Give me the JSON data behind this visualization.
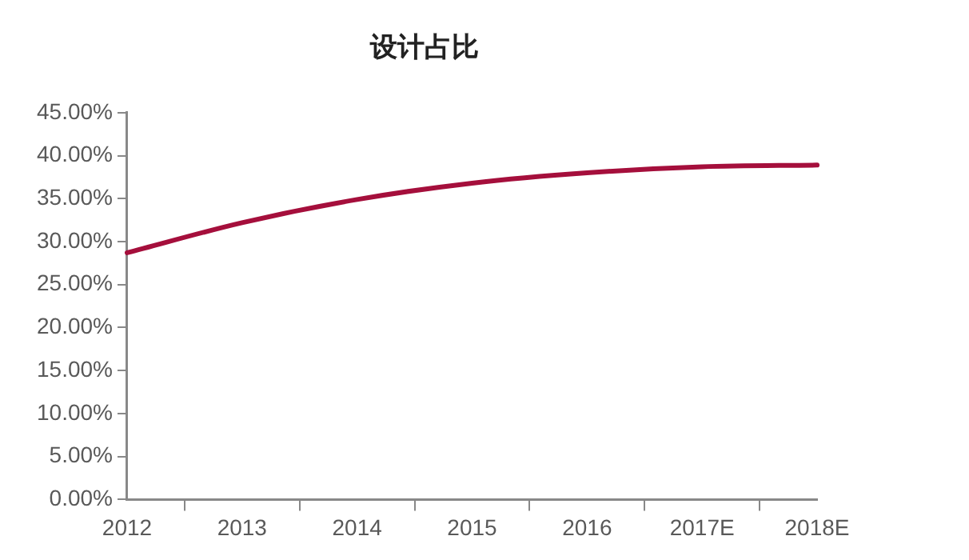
{
  "chart_data": {
    "type": "line",
    "title": "设计占比",
    "categories": [
      "2012",
      "2013",
      "2014",
      "2015",
      "2016",
      "2017E",
      "2018E"
    ],
    "series": [
      {
        "color": "#a50f3c",
        "values": [
          28.7,
          32.2,
          34.9,
          36.8,
          38.0,
          38.7,
          38.9
        ]
      }
    ],
    "ylim": [
      0,
      45
    ],
    "yticks": [
      {
        "value": 0,
        "label": "0.00%"
      },
      {
        "value": 5,
        "label": "5.00%"
      },
      {
        "value": 10,
        "label": "10.00%"
      },
      {
        "value": 15,
        "label": "15.00%"
      },
      {
        "value": 20,
        "label": "20.00%"
      },
      {
        "value": 25,
        "label": "25.00%"
      },
      {
        "value": 30,
        "label": "30.00%"
      },
      {
        "value": 35,
        "label": "35.00%"
      },
      {
        "value": 40,
        "label": "40.00%"
      },
      {
        "value": 45,
        "label": "45.00%"
      }
    ],
    "grid": false,
    "legend": false,
    "marker": "none",
    "line_style": "solid"
  }
}
